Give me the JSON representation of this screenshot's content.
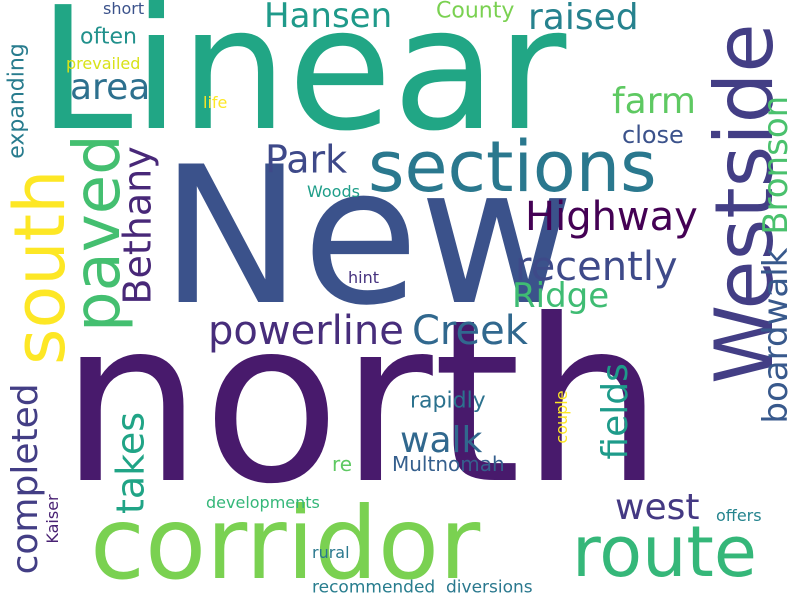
{
  "words": [
    {
      "text": "Linear",
      "color": "#21a685"
    },
    {
      "text": "New",
      "color": "#3b528b"
    },
    {
      "text": "north",
      "color": "#481a6c"
    },
    {
      "text": "corridor",
      "color": "#7ad151"
    },
    {
      "text": "sections",
      "color": "#2a788e"
    },
    {
      "text": "Westside",
      "color": "#433e85"
    },
    {
      "text": "route",
      "color": "#35b779"
    },
    {
      "text": "south",
      "color": "#fde725"
    },
    {
      "text": "paved",
      "color": "#44bf70"
    },
    {
      "text": "Highway",
      "color": "#440154"
    },
    {
      "text": "recently",
      "color": "#3e4a89"
    },
    {
      "text": "powerline",
      "color": "#472d7b"
    },
    {
      "text": "Creek",
      "color": "#31688e"
    },
    {
      "text": "Bethany",
      "color": "#482878"
    },
    {
      "text": "Park",
      "color": "#3e4989"
    },
    {
      "text": "Ridge",
      "color": "#3fbc73"
    },
    {
      "text": "Hansen",
      "color": "#1f9a8a"
    },
    {
      "text": "raised",
      "color": "#26828e"
    },
    {
      "text": "area",
      "color": "#2d708e"
    },
    {
      "text": "farm",
      "color": "#5ec962"
    },
    {
      "text": "Bronson",
      "color": "#4ac16d"
    },
    {
      "text": "boardwalk",
      "color": "#38598c"
    },
    {
      "text": "fields",
      "color": "#1e9b8a"
    },
    {
      "text": "completed",
      "color": "#433e85"
    },
    {
      "text": "takes",
      "color": "#20a486"
    },
    {
      "text": "walk",
      "color": "#31688e"
    },
    {
      "text": "west",
      "color": "#443983"
    },
    {
      "text": "close",
      "color": "#3b528b"
    },
    {
      "text": "County",
      "color": "#7ad151"
    },
    {
      "text": "often",
      "color": "#21918c"
    },
    {
      "text": "expanding",
      "color": "#287c8e"
    },
    {
      "text": "rapidly",
      "color": "#2c728e"
    },
    {
      "text": "Multnomah",
      "color": "#355f8d"
    },
    {
      "text": "re",
      "color": "#5ec962"
    },
    {
      "text": "short",
      "color": "#3b528b"
    },
    {
      "text": "prevailed",
      "color": "#d8e219"
    },
    {
      "text": "life",
      "color": "#fde725"
    },
    {
      "text": "Woods",
      "color": "#1f9e89"
    },
    {
      "text": "hint",
      "color": "#46327e"
    },
    {
      "text": "couple",
      "color": "#fde725"
    },
    {
      "text": "developments",
      "color": "#35b779"
    },
    {
      "text": "offers",
      "color": "#25848e"
    },
    {
      "text": "Kaiser",
      "color": "#482173"
    },
    {
      "text": "rural",
      "color": "#2a788e"
    },
    {
      "text": "recommended",
      "color": "#287d8e"
    },
    {
      "text": "diversions",
      "color": "#2a788e"
    }
  ]
}
